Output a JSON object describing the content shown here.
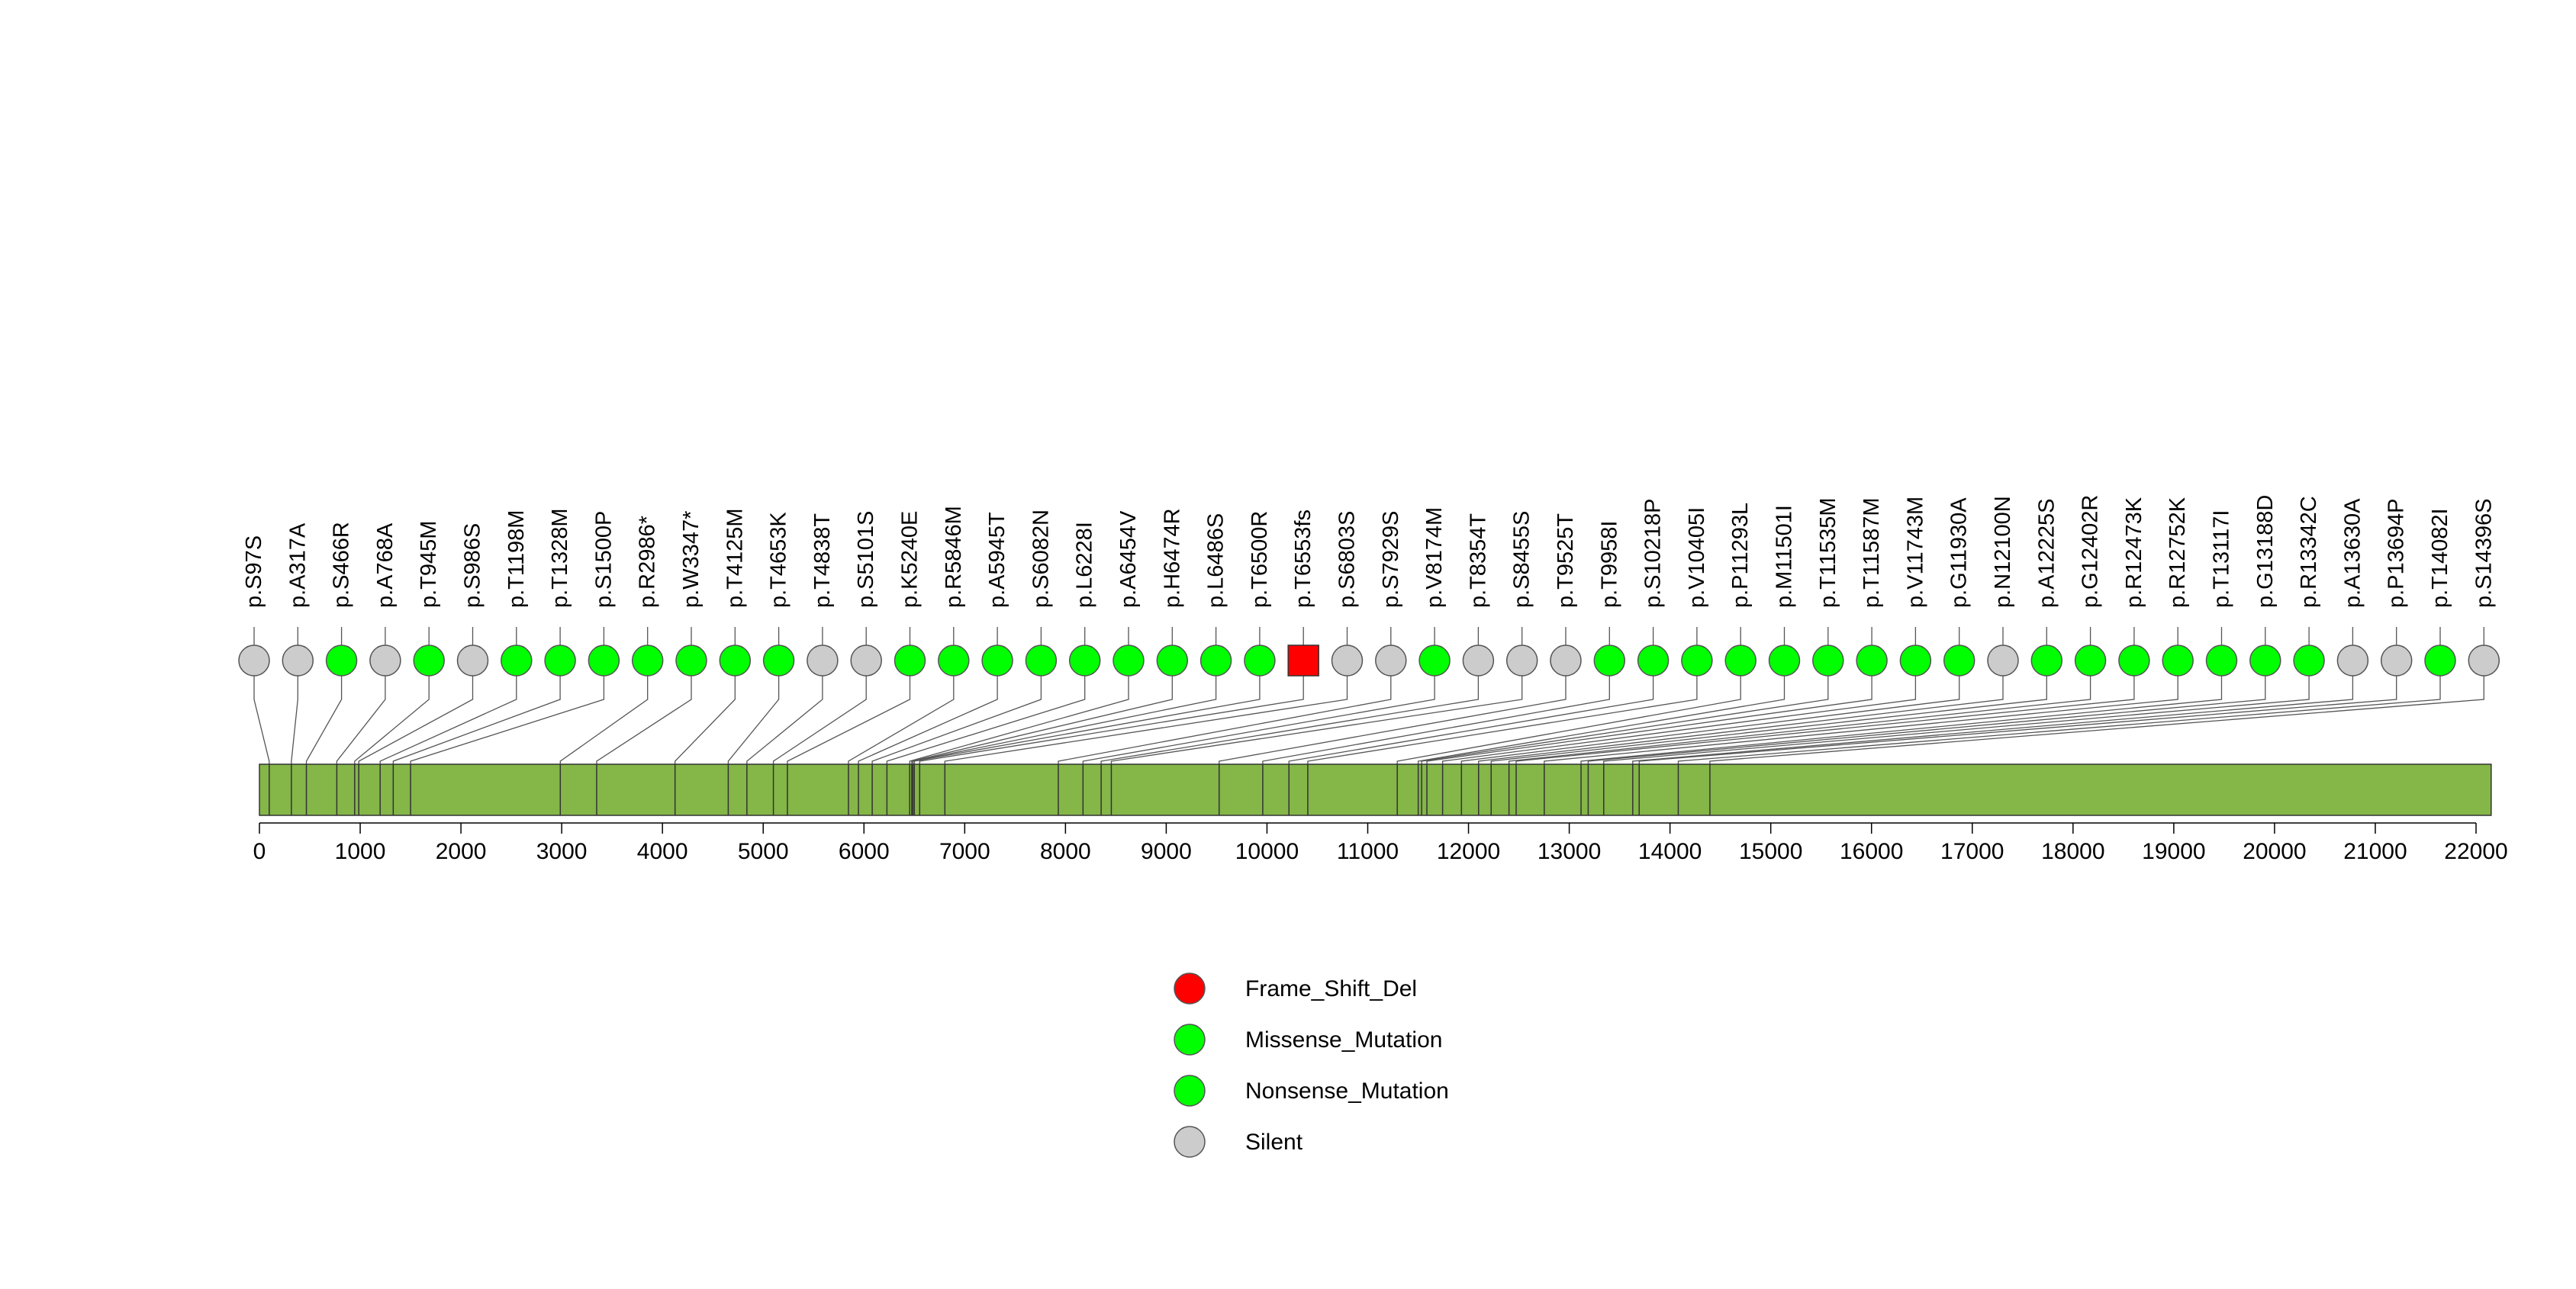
{
  "chart_data": {
    "type": "lollipop",
    "title": "",
    "xlabel": "",
    "ylabel": "",
    "xlim": [
      0,
      22000
    ],
    "x_ticks": [
      0,
      1000,
      2000,
      3000,
      4000,
      5000,
      6000,
      7000,
      8000,
      9000,
      10000,
      11000,
      12000,
      13000,
      14000,
      15000,
      16000,
      17000,
      18000,
      19000,
      20000,
      21000,
      22000
    ],
    "protein_length": 22150,
    "colors": {
      "protein_bar": "#84b648",
      "Frame_Shift_Del": "#ff0000",
      "Missense_Mutation": "#00ff00",
      "Nonsense_Mutation": "#00ff00",
      "Silent": "#cccccc"
    },
    "mutations": [
      {
        "label": "p.S97S",
        "position": 97,
        "type": "Silent"
      },
      {
        "label": "p.A317A",
        "position": 317,
        "type": "Silent"
      },
      {
        "label": "p.S466R",
        "position": 466,
        "type": "Missense_Mutation"
      },
      {
        "label": "p.A768A",
        "position": 768,
        "type": "Silent"
      },
      {
        "label": "p.T945M",
        "position": 945,
        "type": "Missense_Mutation"
      },
      {
        "label": "p.S986S",
        "position": 986,
        "type": "Silent"
      },
      {
        "label": "p.T1198M",
        "position": 1198,
        "type": "Missense_Mutation"
      },
      {
        "label": "p.T1328M",
        "position": 1328,
        "type": "Missense_Mutation"
      },
      {
        "label": "p.S1500P",
        "position": 1500,
        "type": "Missense_Mutation"
      },
      {
        "label": "p.R2986*",
        "position": 2986,
        "type": "Nonsense_Mutation"
      },
      {
        "label": "p.W3347*",
        "position": 3347,
        "type": "Nonsense_Mutation"
      },
      {
        "label": "p.T4125M",
        "position": 4125,
        "type": "Missense_Mutation"
      },
      {
        "label": "p.T4653K",
        "position": 4653,
        "type": "Missense_Mutation"
      },
      {
        "label": "p.T4838T",
        "position": 4838,
        "type": "Silent"
      },
      {
        "label": "p.S5101S",
        "position": 5101,
        "type": "Silent"
      },
      {
        "label": "p.K5240E",
        "position": 5240,
        "type": "Missense_Mutation"
      },
      {
        "label": "p.R5846M",
        "position": 5846,
        "type": "Missense_Mutation"
      },
      {
        "label": "p.A5945T",
        "position": 5945,
        "type": "Missense_Mutation"
      },
      {
        "label": "p.S6082N",
        "position": 6082,
        "type": "Missense_Mutation"
      },
      {
        "label": "p.L6228I",
        "position": 6228,
        "type": "Missense_Mutation"
      },
      {
        "label": "p.A6454V",
        "position": 6454,
        "type": "Missense_Mutation"
      },
      {
        "label": "p.H6474R",
        "position": 6474,
        "type": "Missense_Mutation"
      },
      {
        "label": "p.L6486S",
        "position": 6486,
        "type": "Missense_Mutation"
      },
      {
        "label": "p.T6500R",
        "position": 6500,
        "type": "Missense_Mutation"
      },
      {
        "label": "p.T6553fs",
        "position": 6553,
        "type": "Frame_Shift_Del"
      },
      {
        "label": "p.S6803S",
        "position": 6803,
        "type": "Silent"
      },
      {
        "label": "p.S7929S",
        "position": 7929,
        "type": "Silent"
      },
      {
        "label": "p.V8174M",
        "position": 8174,
        "type": "Missense_Mutation"
      },
      {
        "label": "p.T8354T",
        "position": 8354,
        "type": "Silent"
      },
      {
        "label": "p.S8455S",
        "position": 8455,
        "type": "Silent"
      },
      {
        "label": "p.T9525T",
        "position": 9525,
        "type": "Silent"
      },
      {
        "label": "p.T9958I",
        "position": 9958,
        "type": "Missense_Mutation"
      },
      {
        "label": "p.S10218P",
        "position": 10218,
        "type": "Missense_Mutation"
      },
      {
        "label": "p.V10405I",
        "position": 10405,
        "type": "Missense_Mutation"
      },
      {
        "label": "p.P11293L",
        "position": 11293,
        "type": "Missense_Mutation"
      },
      {
        "label": "p.M11501I",
        "position": 11501,
        "type": "Missense_Mutation"
      },
      {
        "label": "p.T11535M",
        "position": 11535,
        "type": "Missense_Mutation"
      },
      {
        "label": "p.T11587M",
        "position": 11587,
        "type": "Missense_Mutation"
      },
      {
        "label": "p.V11743M",
        "position": 11743,
        "type": "Missense_Mutation"
      },
      {
        "label": "p.G11930A",
        "position": 11930,
        "type": "Missense_Mutation"
      },
      {
        "label": "p.N12100N",
        "position": 12100,
        "type": "Silent"
      },
      {
        "label": "p.A12225S",
        "position": 12225,
        "type": "Missense_Mutation"
      },
      {
        "label": "p.G12402R",
        "position": 12402,
        "type": "Missense_Mutation"
      },
      {
        "label": "p.R12473K",
        "position": 12473,
        "type": "Missense_Mutation"
      },
      {
        "label": "p.R12752K",
        "position": 12752,
        "type": "Missense_Mutation"
      },
      {
        "label": "p.T13117I",
        "position": 13117,
        "type": "Missense_Mutation"
      },
      {
        "label": "p.G13188D",
        "position": 13188,
        "type": "Missense_Mutation"
      },
      {
        "label": "p.R13342C",
        "position": 13342,
        "type": "Missense_Mutation"
      },
      {
        "label": "p.A13630A",
        "position": 13630,
        "type": "Silent"
      },
      {
        "label": "p.P13694P",
        "position": 13694,
        "type": "Silent"
      },
      {
        "label": "p.T14082I",
        "position": 14082,
        "type": "Missense_Mutation"
      },
      {
        "label": "p.S14396S",
        "position": 14396,
        "type": "Silent"
      }
    ],
    "legend": [
      {
        "label": "Frame_Shift_Del",
        "type": "Frame_Shift_Del"
      },
      {
        "label": "Missense_Mutation",
        "type": "Missense_Mutation"
      },
      {
        "label": "Nonsense_Mutation",
        "type": "Nonsense_Mutation"
      },
      {
        "label": "Silent",
        "type": "Silent"
      }
    ]
  }
}
